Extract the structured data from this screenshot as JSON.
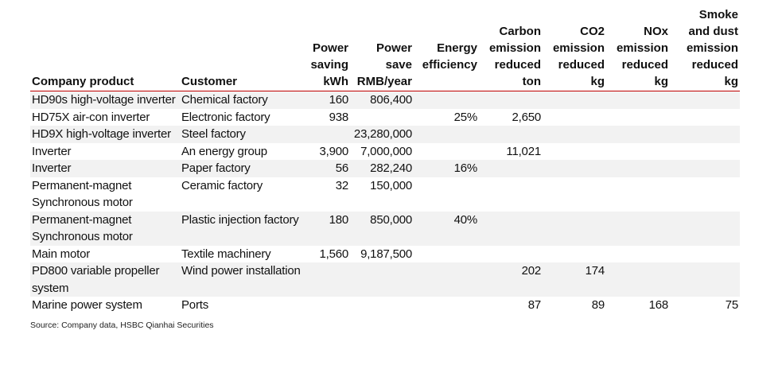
{
  "table": {
    "headers": [
      {
        "lines": [
          "",
          "Company product"
        ],
        "unit": "",
        "align": "left"
      },
      {
        "lines": [
          "",
          "Customer"
        ],
        "unit": "",
        "align": "left"
      },
      {
        "lines": [
          "Power",
          "saving"
        ],
        "unit": "kWh",
        "align": "right"
      },
      {
        "lines": [
          "Power",
          "save"
        ],
        "unit": "RMB/year",
        "align": "right"
      },
      {
        "lines": [
          "Energy",
          "efficiency"
        ],
        "unit": "",
        "align": "right"
      },
      {
        "lines": [
          "Carbon",
          "emission",
          "reduced"
        ],
        "unit": "ton",
        "align": "right"
      },
      {
        "lines": [
          "CO2",
          "emission",
          "reduced"
        ],
        "unit": "kg",
        "align": "right"
      },
      {
        "lines": [
          "NOx",
          "emission",
          "reduced"
        ],
        "unit": "kg",
        "align": "right"
      },
      {
        "lines": [
          "Smoke",
          "and dust",
          "emission",
          "reduced"
        ],
        "unit": "kg",
        "align": "right"
      }
    ],
    "first_header_label": "Company product",
    "second_header_label": "Customer",
    "rows": [
      {
        "product": "HD90s high-voltage inverter",
        "customer": "Chemical factory",
        "power_saving": "160",
        "power_save": "806,400",
        "energy_efficiency": "",
        "carbon": "",
        "co2": "",
        "nox": "",
        "smoke": ""
      },
      {
        "product": "HD75X air-con inverter",
        "customer": "Electronic factory",
        "power_saving": "938",
        "power_save": "",
        "energy_efficiency": "25%",
        "carbon": "2,650",
        "co2": "",
        "nox": "",
        "smoke": ""
      },
      {
        "product": "HD9X high-voltage inverter",
        "customer": "Steel factory",
        "power_saving": "",
        "power_save": "23,280,000",
        "energy_efficiency": "",
        "carbon": "",
        "co2": "",
        "nox": "",
        "smoke": ""
      },
      {
        "product": "Inverter",
        "customer": "An energy group",
        "power_saving": "3,900",
        "power_save": "7,000,000",
        "energy_efficiency": "",
        "carbon": "11,021",
        "co2": "",
        "nox": "",
        "smoke": ""
      },
      {
        "product": "Inverter",
        "customer": "Paper factory",
        "power_saving": "56",
        "power_save": "282,240",
        "energy_efficiency": "16%",
        "carbon": "",
        "co2": "",
        "nox": "",
        "smoke": ""
      },
      {
        "product": "Permanent-magnet Synchronous motor",
        "customer": "Ceramic factory",
        "power_saving": "32",
        "power_save": "150,000",
        "energy_efficiency": "",
        "carbon": "",
        "co2": "",
        "nox": "",
        "smoke": ""
      },
      {
        "product": "Permanent-magnet Synchronous motor",
        "customer": "Plastic injection factory",
        "power_saving": "180",
        "power_save": "850,000",
        "energy_efficiency": "40%",
        "carbon": "",
        "co2": "",
        "nox": "",
        "smoke": ""
      },
      {
        "product": "Main motor",
        "customer": "Textile machinery",
        "power_saving": "1,560",
        "power_save": "9,187,500",
        "energy_efficiency": "",
        "carbon": "",
        "co2": "",
        "nox": "",
        "smoke": ""
      },
      {
        "product": "PD800 variable propeller system",
        "customer": "Wind power installation",
        "power_saving": "",
        "power_save": "",
        "energy_efficiency": "",
        "carbon": "202",
        "co2": "174",
        "nox": "",
        "smoke": ""
      },
      {
        "product": "Marine power system",
        "customer": "Ports",
        "power_saving": "",
        "power_save": "",
        "energy_efficiency": "",
        "carbon": "87",
        "co2": "89",
        "nox": "168",
        "smoke": "75"
      }
    ]
  },
  "source": "Source: Company data, HSBC Qianhai Securities",
  "colors": {
    "rule": "#c00000",
    "shade": "#f2f2f2"
  }
}
